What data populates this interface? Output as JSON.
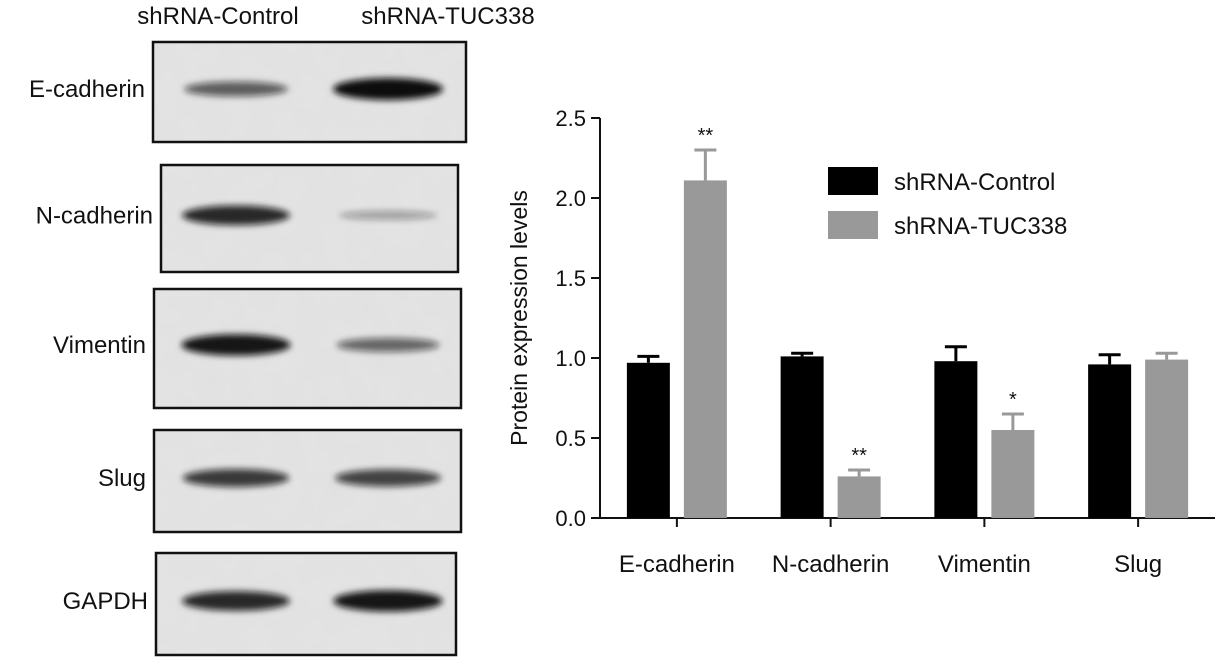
{
  "blot": {
    "lane_labels": [
      "shRNA-Control",
      "shRNA-TUC338"
    ],
    "proteins": [
      "E-cadherin",
      "N-cadherin",
      "Vimentin",
      "Slug",
      "GAPDH"
    ],
    "band_intensity": [
      [
        0.55,
        1.0
      ],
      [
        0.85,
        0.18
      ],
      [
        0.95,
        0.5
      ],
      [
        0.75,
        0.7
      ],
      [
        0.85,
        0.95
      ]
    ]
  },
  "chart_data": {
    "type": "bar",
    "title": "",
    "xlabel": "",
    "ylabel": "Protein expression levels",
    "ylim": [
      0,
      2.5
    ],
    "yticks": [
      "0.0",
      "0.5",
      "1.0",
      "1.5",
      "2.0",
      "2.5"
    ],
    "categories": [
      "E-cadherin",
      "N-cadherin",
      "Vimentin",
      "Slug"
    ],
    "series": [
      {
        "name": "shRNA-Control",
        "color": "#000000",
        "values": [
          0.97,
          1.01,
          0.98,
          0.96
        ],
        "errors": [
          0.04,
          0.02,
          0.09,
          0.06
        ]
      },
      {
        "name": "shRNA-TUC338",
        "color": "#999999",
        "values": [
          2.11,
          0.26,
          0.55,
          0.99
        ],
        "errors": [
          0.19,
          0.04,
          0.1,
          0.04
        ]
      }
    ],
    "annotations": [
      {
        "category": "E-cadherin",
        "series": "shRNA-TUC338",
        "text": "**"
      },
      {
        "category": "N-cadherin",
        "series": "shRNA-TUC338",
        "text": "**"
      },
      {
        "category": "Vimentin",
        "series": "shRNA-TUC338",
        "text": "*"
      }
    ],
    "legend_position": "top-right",
    "grid": false
  }
}
